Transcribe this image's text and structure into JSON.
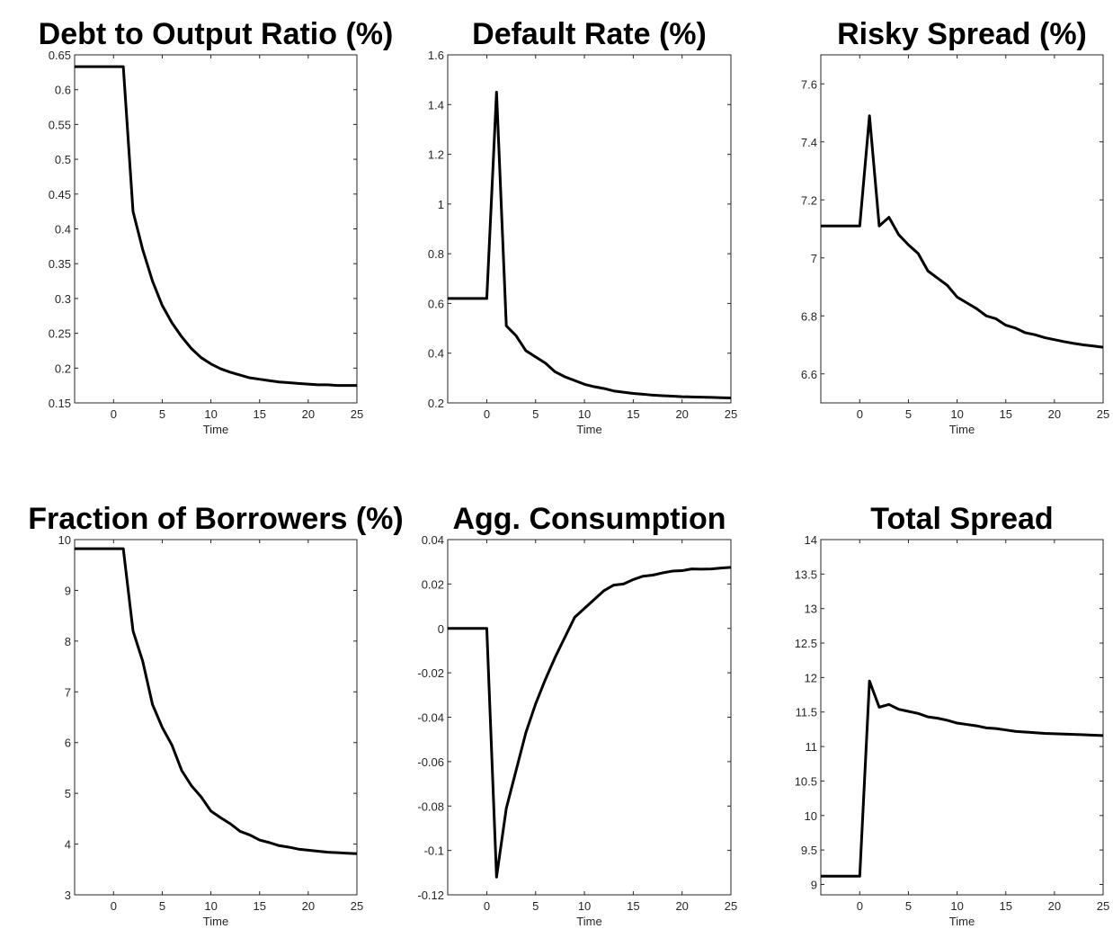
{
  "chart_data": [
    {
      "type": "line",
      "title": "Debt to Output Ratio (%)",
      "xlabel": "Time",
      "color": "#000000",
      "x": [
        -4,
        -3,
        -2,
        -1,
        0,
        1,
        2,
        3,
        4,
        5,
        6,
        7,
        8,
        9,
        10,
        11,
        12,
        13,
        14,
        15,
        16,
        17,
        18,
        19,
        20,
        21,
        22,
        23,
        24,
        25
      ],
      "values": [
        0.633,
        0.633,
        0.633,
        0.633,
        0.633,
        0.633,
        0.425,
        0.37,
        0.325,
        0.29,
        0.265,
        0.245,
        0.228,
        0.215,
        0.206,
        0.199,
        0.194,
        0.19,
        0.186,
        0.184,
        0.182,
        0.18,
        0.179,
        0.178,
        0.177,
        0.176,
        0.176,
        0.175,
        0.175,
        0.175
      ],
      "xlim": [
        -4,
        25
      ],
      "xticks": [
        0,
        5,
        10,
        15,
        20,
        25
      ],
      "ylim": [
        0.15,
        0.65
      ],
      "yticks": [
        0.15,
        0.2,
        0.25,
        0.3,
        0.35,
        0.4,
        0.45,
        0.5,
        0.55,
        0.6,
        0.65
      ]
    },
    {
      "type": "line",
      "title": "Default Rate (%)",
      "xlabel": "Time",
      "color": "#000000",
      "x": [
        -4,
        -3,
        -2,
        -1,
        0,
        1,
        2,
        3,
        4,
        5,
        6,
        7,
        8,
        9,
        10,
        11,
        12,
        13,
        14,
        15,
        16,
        17,
        18,
        19,
        20,
        21,
        22,
        23,
        24,
        25
      ],
      "values": [
        0.62,
        0.62,
        0.62,
        0.62,
        0.62,
        1.45,
        0.51,
        0.47,
        0.41,
        0.385,
        0.36,
        0.325,
        0.305,
        0.29,
        0.275,
        0.265,
        0.258,
        0.248,
        0.243,
        0.238,
        0.235,
        0.231,
        0.229,
        0.227,
        0.225,
        0.224,
        0.223,
        0.222,
        0.221,
        0.22
      ],
      "xlim": [
        -4,
        25
      ],
      "xticks": [
        0,
        5,
        10,
        15,
        20,
        25
      ],
      "ylim": [
        0.2,
        1.6
      ],
      "yticks": [
        0.2,
        0.4,
        0.6,
        0.8,
        1,
        1.2,
        1.4,
        1.6
      ]
    },
    {
      "type": "line",
      "title": "Risky Spread (%)",
      "xlabel": "Time",
      "color": "#000000",
      "x": [
        -4,
        -3,
        -2,
        -1,
        0,
        1,
        2,
        3,
        4,
        5,
        6,
        7,
        8,
        9,
        10,
        11,
        12,
        13,
        14,
        15,
        16,
        17,
        18,
        19,
        20,
        21,
        22,
        23,
        24,
        25
      ],
      "values": [
        7.11,
        7.11,
        7.11,
        7.11,
        7.11,
        7.49,
        7.11,
        7.14,
        7.08,
        7.045,
        7.015,
        6.955,
        6.93,
        6.905,
        6.865,
        6.845,
        6.825,
        6.8,
        6.79,
        6.768,
        6.758,
        6.742,
        6.735,
        6.725,
        6.718,
        6.711,
        6.705,
        6.7,
        6.696,
        6.692
      ],
      "xlim": [
        -4,
        25
      ],
      "xticks": [
        0,
        5,
        10,
        15,
        20,
        25
      ],
      "ylim": [
        6.5,
        7.7
      ],
      "yticks": [
        6.6,
        6.8,
        7,
        7.2,
        7.4,
        7.6
      ]
    },
    {
      "type": "line",
      "title": "Fraction of Borrowers (%)",
      "xlabel": "Time",
      "color": "#000000",
      "x": [
        -4,
        -3,
        -2,
        -1,
        0,
        1,
        2,
        3,
        4,
        5,
        6,
        7,
        8,
        9,
        10,
        11,
        12,
        13,
        14,
        15,
        16,
        17,
        18,
        19,
        20,
        21,
        22,
        23,
        24,
        25
      ],
      "values": [
        9.82,
        9.82,
        9.82,
        9.82,
        9.82,
        9.82,
        8.2,
        7.6,
        6.75,
        6.3,
        5.95,
        5.45,
        5.15,
        4.93,
        4.65,
        4.52,
        4.4,
        4.25,
        4.18,
        4.08,
        4.03,
        3.97,
        3.94,
        3.9,
        3.88,
        3.86,
        3.84,
        3.83,
        3.82,
        3.81
      ],
      "xlim": [
        -4,
        25
      ],
      "xticks": [
        0,
        5,
        10,
        15,
        20,
        25
      ],
      "ylim": [
        3,
        10
      ],
      "yticks": [
        3,
        4,
        5,
        6,
        7,
        8,
        9,
        10
      ]
    },
    {
      "type": "line",
      "title": "Agg. Consumption",
      "xlabel": "Time",
      "color": "#000000",
      "x": [
        -4,
        -3,
        -2,
        -1,
        0,
        1,
        2,
        3,
        4,
        5,
        6,
        7,
        8,
        9,
        10,
        11,
        12,
        13,
        14,
        15,
        16,
        17,
        18,
        19,
        20,
        21,
        22,
        23,
        24,
        25
      ],
      "values": [
        0,
        0,
        0,
        0,
        0,
        -0.112,
        -0.081,
        -0.064,
        -0.047,
        -0.034,
        -0.023,
        -0.013,
        -0.004,
        0.005,
        0.009,
        0.013,
        0.017,
        0.0195,
        0.02,
        0.022,
        0.0235,
        0.024,
        0.025,
        0.0258,
        0.026,
        0.0268,
        0.0267,
        0.0268,
        0.0272,
        0.0275
      ],
      "xlim": [
        -4,
        25
      ],
      "xticks": [
        0,
        5,
        10,
        15,
        20,
        25
      ],
      "ylim": [
        -0.12,
        0.04
      ],
      "yticks": [
        -0.12,
        -0.1,
        -0.08,
        -0.06,
        -0.04,
        -0.02,
        0,
        0.02,
        0.04
      ]
    },
    {
      "type": "line",
      "title": "Total Spread",
      "xlabel": "Time",
      "color": "#000000",
      "x": [
        -4,
        -3,
        -2,
        -1,
        0,
        1,
        2,
        3,
        4,
        5,
        6,
        7,
        8,
        9,
        10,
        11,
        12,
        13,
        14,
        15,
        16,
        17,
        18,
        19,
        20,
        21,
        22,
        23,
        24,
        25
      ],
      "values": [
        9.12,
        9.12,
        9.12,
        9.12,
        9.12,
        11.95,
        11.57,
        11.61,
        11.54,
        11.51,
        11.48,
        11.43,
        11.41,
        11.38,
        11.34,
        11.32,
        11.3,
        11.27,
        11.26,
        11.24,
        11.22,
        11.21,
        11.2,
        11.19,
        11.185,
        11.18,
        11.175,
        11.17,
        11.165,
        11.16
      ],
      "xlim": [
        -4,
        25
      ],
      "xticks": [
        0,
        5,
        10,
        15,
        20,
        25
      ],
      "ylim": [
        8.85,
        14
      ],
      "yticks": [
        9,
        9.5,
        10,
        10.5,
        11,
        11.5,
        12,
        12.5,
        13,
        13.5,
        14
      ]
    }
  ]
}
